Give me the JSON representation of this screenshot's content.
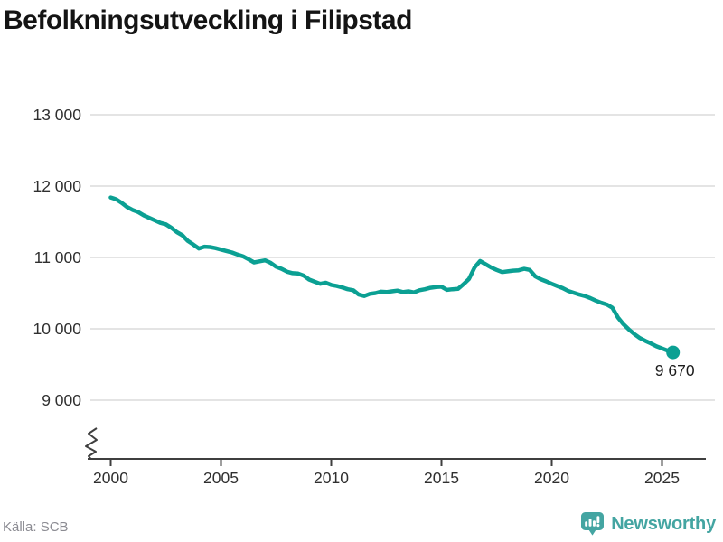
{
  "title": "Befolkningsutveckling i Filipstad",
  "source": "Källa: SCB",
  "brand": {
    "name": "Newsworthy",
    "color": "#44a5a2"
  },
  "colors": {
    "line": "#0ba093",
    "grid": "#e4e4e4",
    "axis": "#3f3f3f",
    "tick_text": "#2f2f2f",
    "end_label_text": "#1c1c1c"
  },
  "chart_data": {
    "type": "line",
    "title": "Befolkningsutveckling i Filipstad",
    "series_name": "Befolkning",
    "x_unit": "year (quarterly values)",
    "x_start": 2000,
    "x_step": 0.25,
    "values": [
      11840,
      11815,
      11765,
      11705,
      11665,
      11635,
      11590,
      11555,
      11520,
      11485,
      11465,
      11415,
      11355,
      11310,
      11230,
      11180,
      11125,
      11150,
      11145,
      11130,
      11110,
      11090,
      11070,
      11040,
      11015,
      10975,
      10930,
      10945,
      10960,
      10925,
      10870,
      10840,
      10800,
      10780,
      10775,
      10745,
      10690,
      10660,
      10630,
      10645,
      10615,
      10600,
      10580,
      10555,
      10540,
      10480,
      10460,
      10490,
      10500,
      10520,
      10515,
      10525,
      10535,
      10515,
      10525,
      10510,
      10540,
      10555,
      10575,
      10585,
      10590,
      10545,
      10555,
      10560,
      10625,
      10700,
      10860,
      10950,
      10905,
      10860,
      10825,
      10795,
      10805,
      10815,
      10820,
      10840,
      10825,
      10735,
      10695,
      10665,
      10630,
      10600,
      10570,
      10530,
      10505,
      10480,
      10460,
      10430,
      10395,
      10365,
      10340,
      10295,
      10160,
      10065,
      9990,
      9925,
      9870,
      9830,
      9795,
      9755,
      9725,
      9695,
      9670
    ],
    "final_value": 9670,
    "end_point_label": "9 670",
    "x_ticks": [
      {
        "value": 2000,
        "label": "2000"
      },
      {
        "value": 2005,
        "label": "2005"
      },
      {
        "value": 2010,
        "label": "2010"
      },
      {
        "value": 2015,
        "label": "2015"
      },
      {
        "value": 2020,
        "label": "2020"
      },
      {
        "value": 2025,
        "label": "2025"
      }
    ],
    "y_ticks": [
      {
        "value": 13000,
        "label": "13 000"
      },
      {
        "value": 12000,
        "label": "12 000"
      },
      {
        "value": 11000,
        "label": "11 000"
      },
      {
        "value": 10000,
        "label": "10 000"
      },
      {
        "value": 9000,
        "label": "9 000"
      }
    ],
    "ylim_display": [
      9000,
      13000
    ],
    "axis_break": true,
    "grid": true,
    "legend": false,
    "source": "SCB"
  }
}
